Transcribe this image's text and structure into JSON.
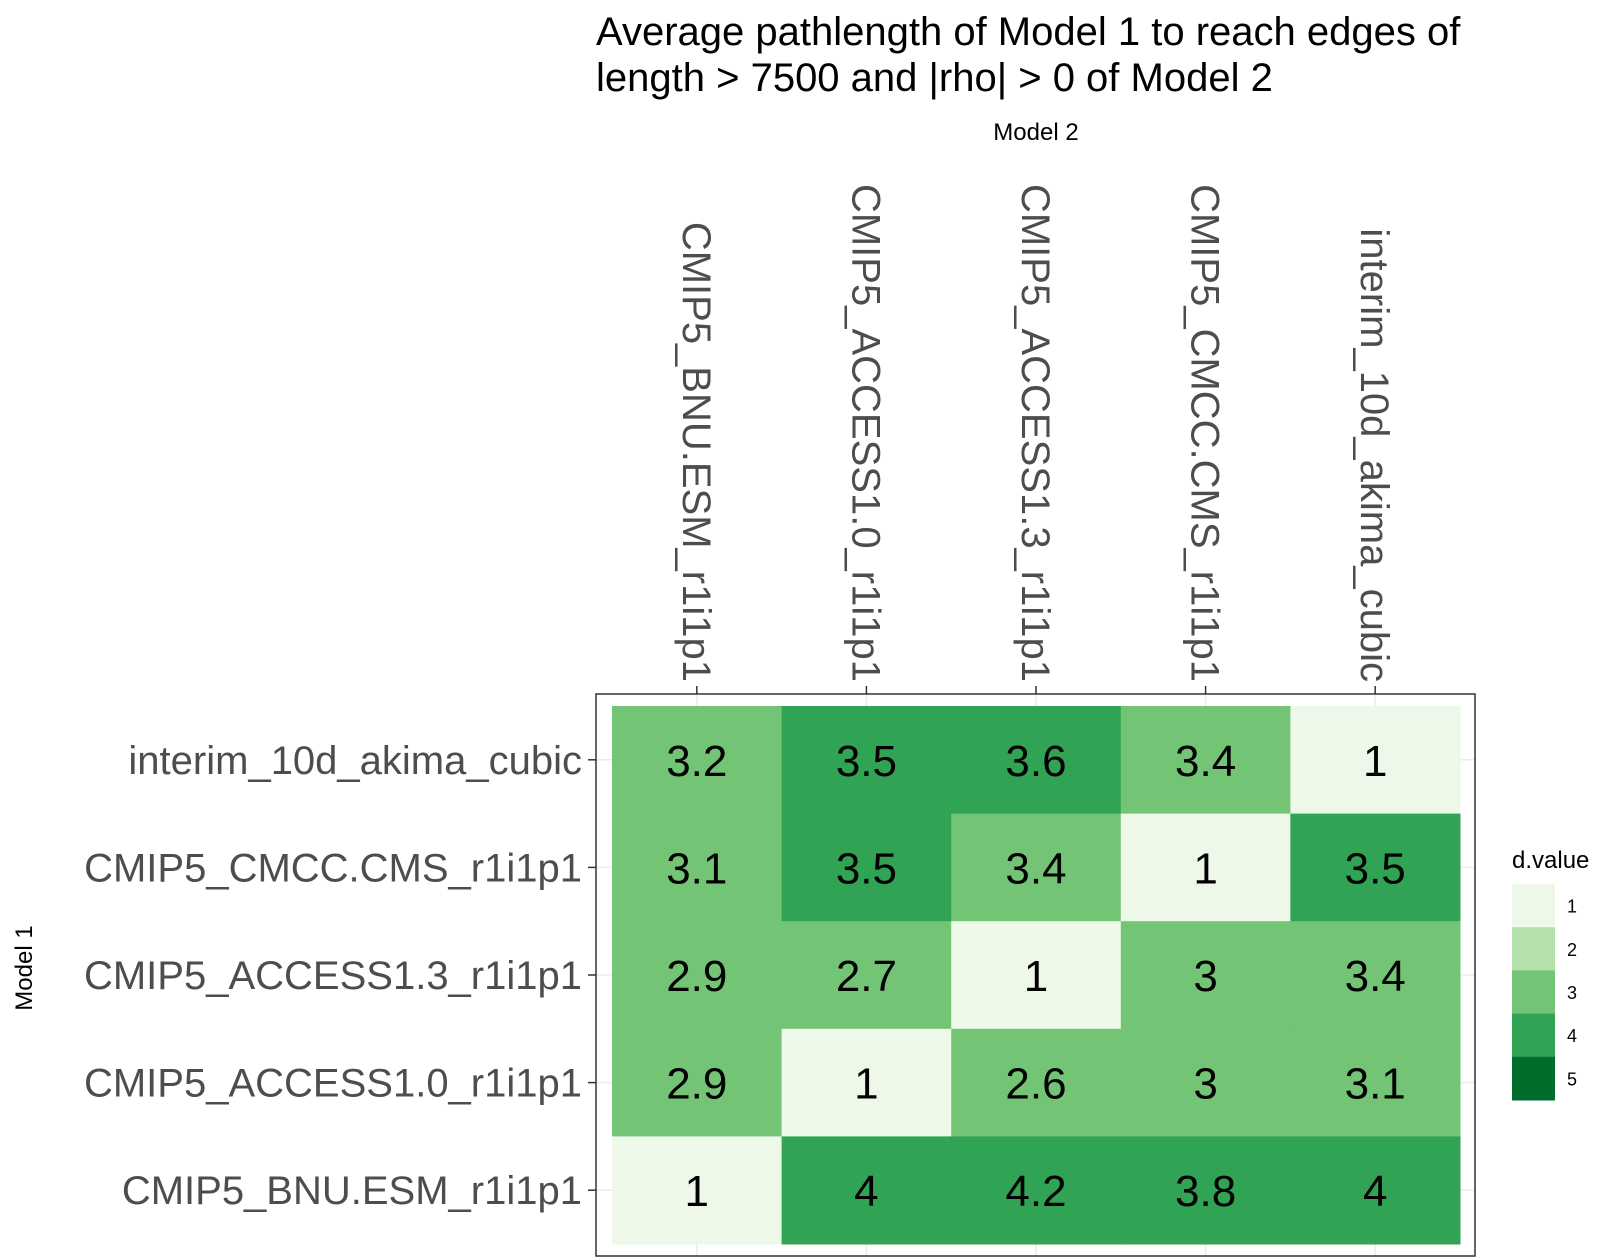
{
  "chart_data": {
    "type": "heatmap",
    "title_lines": [
      "Average pathlength of Model 1 to reach edges of",
      "length > 7500 and |rho| > 0 of Model 2"
    ],
    "xlabel": "Model 2",
    "ylabel": "Model 1",
    "x_categories": [
      "CMIP5_BNU.ESM_r1i1p1",
      "CMIP5_ACCESS1.0_r1i1p1",
      "CMIP5_ACCESS1.3_r1i1p1",
      "CMIP5_CMCC.CMS_r1i1p1",
      "interim_10d_akima_cubic"
    ],
    "y_categories_top_to_bottom": [
      "interim_10d_akima_cubic",
      "CMIP5_CMCC.CMS_r1i1p1",
      "CMIP5_ACCESS1.3_r1i1p1",
      "CMIP5_ACCESS1.0_r1i1p1",
      "CMIP5_BNU.ESM_r1i1p1"
    ],
    "values": [
      [
        3.2,
        3.5,
        3.6,
        3.4,
        1
      ],
      [
        3.1,
        3.5,
        3.4,
        1,
        3.5
      ],
      [
        2.9,
        2.7,
        1,
        3,
        3.4
      ],
      [
        2.9,
        1,
        2.6,
        3,
        3.1
      ],
      [
        1,
        4,
        4.2,
        3.8,
        4
      ]
    ],
    "labels": [
      [
        "3.2",
        "3.5",
        "3.6",
        "3.4",
        "1"
      ],
      [
        "3.1",
        "3.5",
        "3.4",
        "1",
        "3.5"
      ],
      [
        "2.9",
        "2.7",
        "1",
        "3",
        "3.4"
      ],
      [
        "2.9",
        "1",
        "2.6",
        "3",
        "3.1"
      ],
      [
        "1",
        "4",
        "4.2",
        "3.8",
        "4"
      ]
    ],
    "legend": {
      "title": "d.value",
      "position": "right",
      "levels": [
        "1",
        "2",
        "3",
        "4",
        "5"
      ],
      "colors": [
        "#edf8e9",
        "#b5e1ad",
        "#74c476",
        "#31a354",
        "#006d2c"
      ]
    },
    "grid": true,
    "x_axis_position": "top"
  }
}
